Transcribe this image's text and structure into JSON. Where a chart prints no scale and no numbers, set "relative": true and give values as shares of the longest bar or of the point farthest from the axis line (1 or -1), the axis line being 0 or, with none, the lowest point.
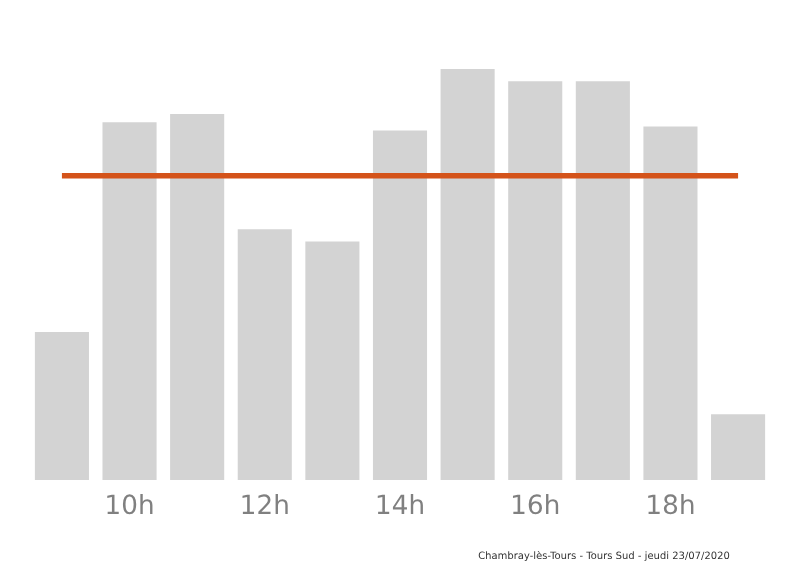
{
  "chart_data": {
    "type": "bar",
    "relative": true,
    "categories": [
      null,
      "10h",
      null,
      "12h",
      null,
      "14h",
      null,
      "16h",
      null,
      "18h",
      null
    ],
    "values": [
      0.36,
      0.87,
      0.89,
      0.61,
      0.58,
      0.85,
      1,
      0.97,
      0.97,
      0.86,
      0.16
    ],
    "color": "#d3d3d3",
    "ref_lines": [
      {
        "axis": "y",
        "value": 0.74,
        "color": "#d4531a"
      }
    ],
    "grid": false,
    "annotations": [
      "Chambray-lès-Tours - Tours Sud - jeudi 23/07/2020"
    ]
  }
}
